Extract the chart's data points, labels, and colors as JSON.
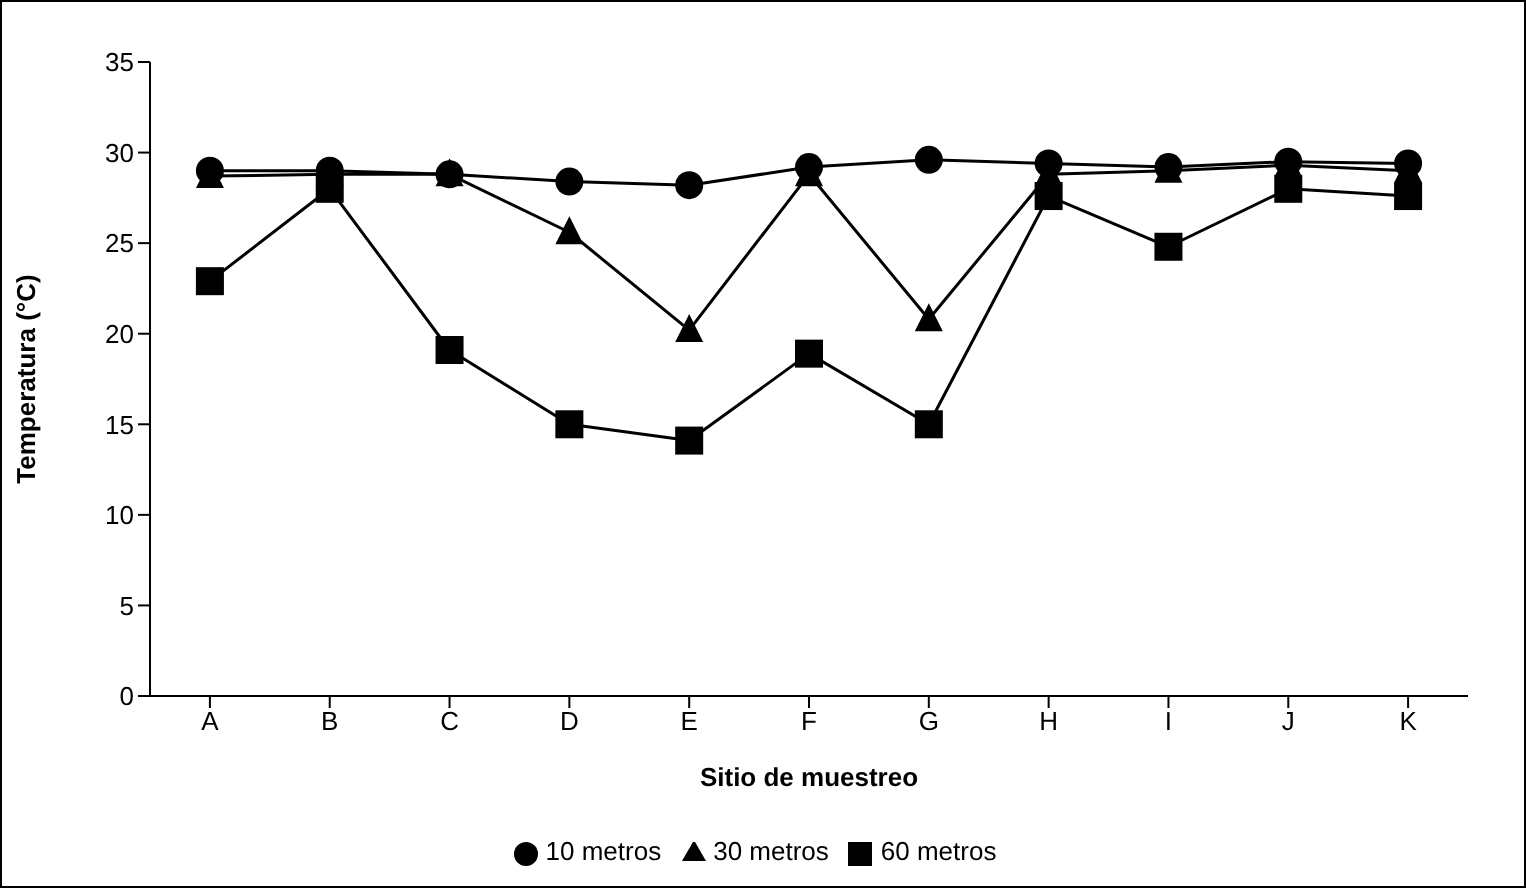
{
  "chart_data": {
    "type": "line",
    "xlabel": "Sitio de muestreo",
    "ylabel": "Temperatura (°C)",
    "categories": [
      "A",
      "B",
      "C",
      "D",
      "E",
      "F",
      "G",
      "H",
      "I",
      "J",
      "K"
    ],
    "series": [
      {
        "name": "10 metros",
        "color": "#000000",
        "marker": "circle",
        "values": [
          29,
          29,
          28.8,
          28.4,
          28.2,
          29.2,
          29.6,
          29.4,
          29.2,
          29.5,
          29.4
        ]
      },
      {
        "name": "30 metros",
        "color": "#000000",
        "marker": "triangle",
        "values": [
          28.7,
          28.8,
          28.8,
          25.6,
          20.2,
          28.8,
          20.8,
          28.8,
          29,
          29.3,
          29
        ]
      },
      {
        "name": "60 metros",
        "color": "#000000",
        "marker": "square",
        "values": [
          22.9,
          28,
          19.1,
          15,
          14.1,
          18.9,
          15,
          27.6,
          24.8,
          28,
          27.6
        ]
      }
    ],
    "ylim": [
      0,
      35
    ],
    "yticks": [
      0,
      5,
      10,
      15,
      20,
      25,
      30,
      35
    ],
    "grid": false,
    "legend": "bottom"
  }
}
